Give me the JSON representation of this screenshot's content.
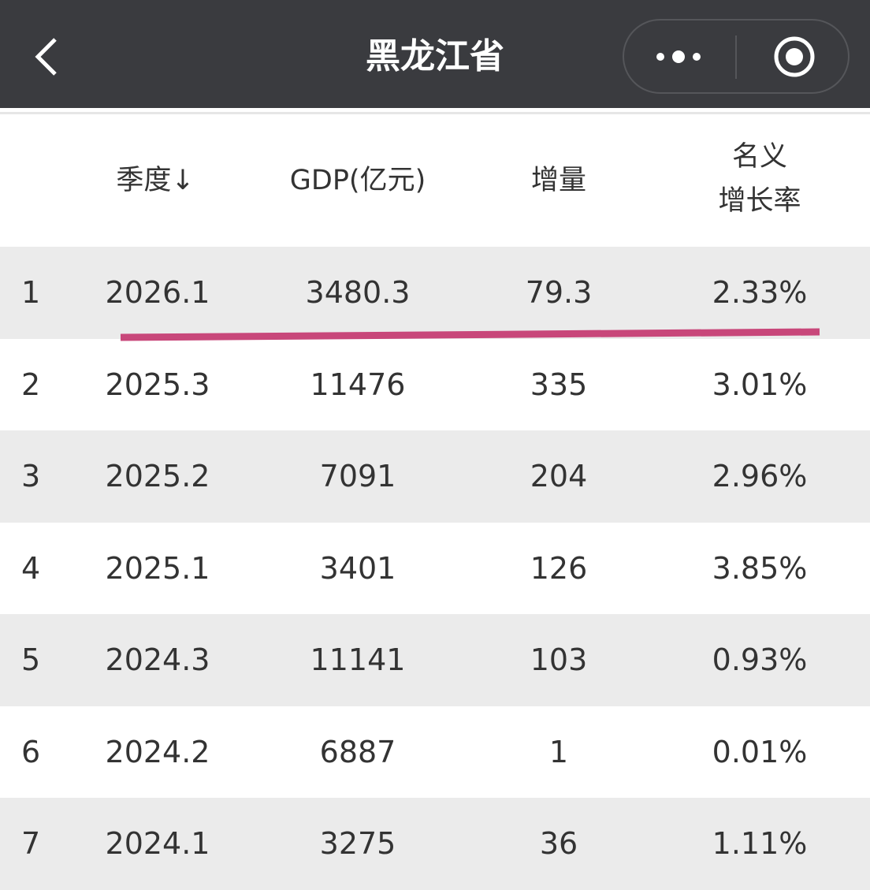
{
  "header": {
    "title": "黑龙江省"
  },
  "table": {
    "columns": [
      "季度↓",
      "GDP(亿元)",
      "增量",
      [
        "名义",
        "增长率"
      ]
    ],
    "rows": [
      [
        "1",
        "2026.1",
        "3480.3",
        "79.3",
        "2.33%"
      ],
      [
        "2",
        "2025.3",
        "11476",
        "335",
        "3.01%"
      ],
      [
        "3",
        "2025.2",
        "7091",
        "204",
        "2.96%"
      ],
      [
        "4",
        "2025.1",
        "3401",
        "126",
        "3.85%"
      ],
      [
        "5",
        "2024.3",
        "11141",
        "103",
        "0.93%"
      ],
      [
        "6",
        "2024.2",
        "6887",
        "1",
        "0.01%"
      ],
      [
        "7",
        "2024.1",
        "3275",
        "36",
        "1.11%"
      ]
    ]
  }
}
